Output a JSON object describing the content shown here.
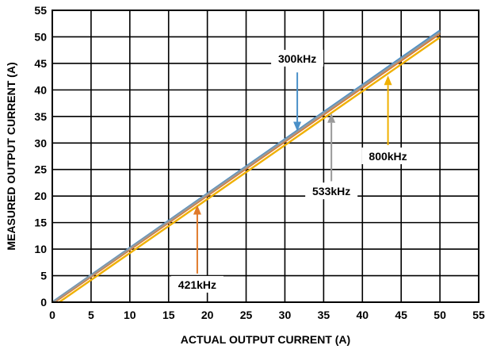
{
  "chart_data": {
    "type": "line",
    "title": "",
    "xlabel": "ACTUAL OUTPUT CURRENT (A)",
    "ylabel": "MEASURED OUTPUT CURRENT (A)",
    "xlim": [
      0,
      55
    ],
    "ylim": [
      0,
      55
    ],
    "xticks": [
      "0",
      "5",
      "10",
      "15",
      "20",
      "25",
      "30",
      "35",
      "40",
      "45",
      "50",
      "55"
    ],
    "yticks": [
      "0",
      "5",
      "10",
      "15",
      "20",
      "25",
      "30",
      "35",
      "40",
      "45",
      "50",
      "55"
    ],
    "grid": true,
    "legend": "none",
    "series": [
      {
        "name": "300kHz",
        "color": "#4a90c8",
        "x": [
          0,
          50
        ],
        "y": [
          0.0,
          51.2
        ]
      },
      {
        "name": "421kHz",
        "color": "#e07a2a",
        "x": [
          0,
          50
        ],
        "y": [
          -0.3,
          50.6
        ]
      },
      {
        "name": "533kHz",
        "color": "#9a9a9a",
        "x": [
          0,
          50
        ],
        "y": [
          -0.1,
          50.9
        ]
      },
      {
        "name": "800kHz",
        "color": "#f0b000",
        "x": [
          0,
          50
        ],
        "y": [
          -0.9,
          49.9
        ]
      }
    ],
    "annotations": [
      {
        "text": "300kHz",
        "series": "300kHz",
        "label_at": [
          31.6,
          45.9
        ],
        "arrow_from": [
          31.6,
          43.3
        ],
        "arrow_to": [
          31.6,
          32.2
        ],
        "color": "#4a90c8"
      },
      {
        "text": "533kHz",
        "series": "533kHz",
        "label_at": [
          36.0,
          20.9
        ],
        "arrow_from": [
          36.0,
          22.8
        ],
        "arrow_to": [
          36.0,
          35.6
        ],
        "color": "#9a9a9a"
      },
      {
        "text": "800kHz",
        "series": "800kHz",
        "label_at": [
          43.3,
          27.5
        ],
        "arrow_from": [
          43.3,
          29.6
        ],
        "arrow_to": [
          43.3,
          42.7
        ],
        "color": "#f0b000"
      },
      {
        "text": "421kHz",
        "series": "421kHz",
        "label_at": [
          18.7,
          3.3
        ],
        "arrow_from": [
          18.7,
          5.4
        ],
        "arrow_to": [
          18.7,
          18.3
        ],
        "color": "#e07a2a"
      }
    ]
  }
}
